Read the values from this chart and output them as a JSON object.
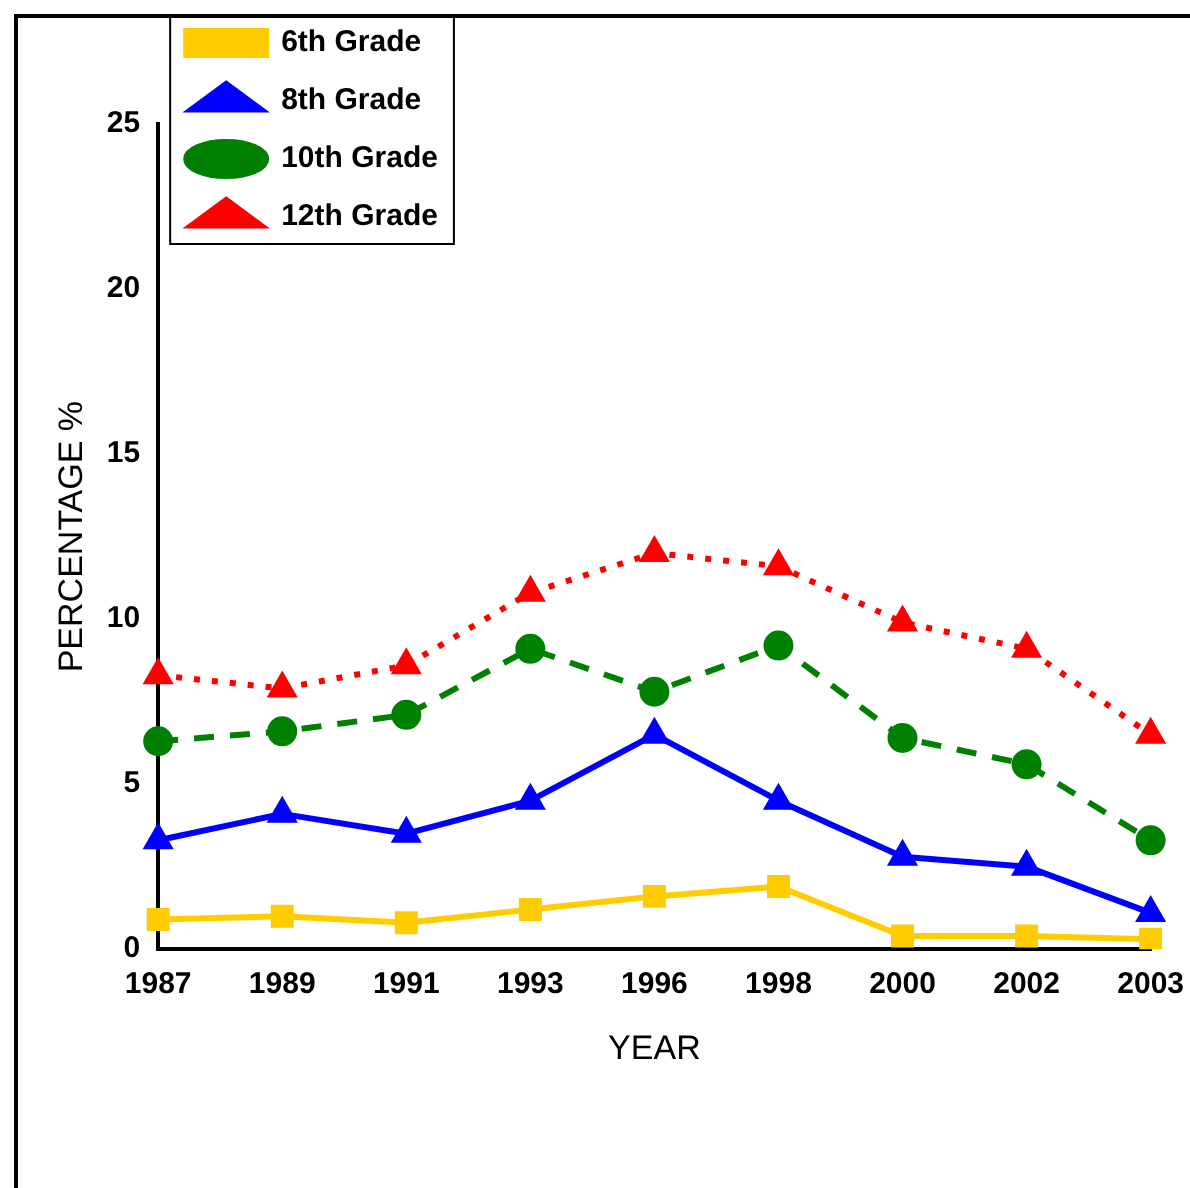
{
  "chart_data": {
    "type": "line",
    "xlabel": "YEAR",
    "ylabel": "PERCENTAGE %",
    "categories": [
      "1987",
      "1989",
      "1991",
      "1993",
      "1996",
      "1998",
      "2000",
      "2002",
      "2003"
    ],
    "ylim": [
      0,
      25
    ],
    "yticks": [
      0,
      5,
      10,
      15,
      20,
      25
    ],
    "grid": false,
    "legend": "top left",
    "series": [
      {
        "name": "6th Grade",
        "color": "#ffcc00",
        "marker": "square",
        "line_style": "solid",
        "values": [
          0.9,
          1.0,
          0.8,
          1.2,
          1.6,
          1.9,
          0.4,
          0.4,
          0.3
        ]
      },
      {
        "name": "8th Grade",
        "color": "#0000ff",
        "marker": "triangle",
        "line_style": "solid",
        "values": [
          3.3,
          4.1,
          3.5,
          4.5,
          6.5,
          4.5,
          2.8,
          2.5,
          1.1
        ]
      },
      {
        "name": "10th Grade",
        "color": "#008000",
        "marker": "circle",
        "line_style": "dashed",
        "values": [
          6.3,
          6.6,
          7.1,
          9.1,
          7.8,
          9.2,
          6.4,
          5.6,
          3.3
        ]
      },
      {
        "name": "12th Grade",
        "color": "#ff0000",
        "marker": "triangle",
        "line_style": "dotted",
        "values": [
          8.3,
          7.9,
          8.6,
          10.8,
          12.0,
          11.6,
          9.9,
          9.1,
          6.5
        ]
      }
    ]
  }
}
